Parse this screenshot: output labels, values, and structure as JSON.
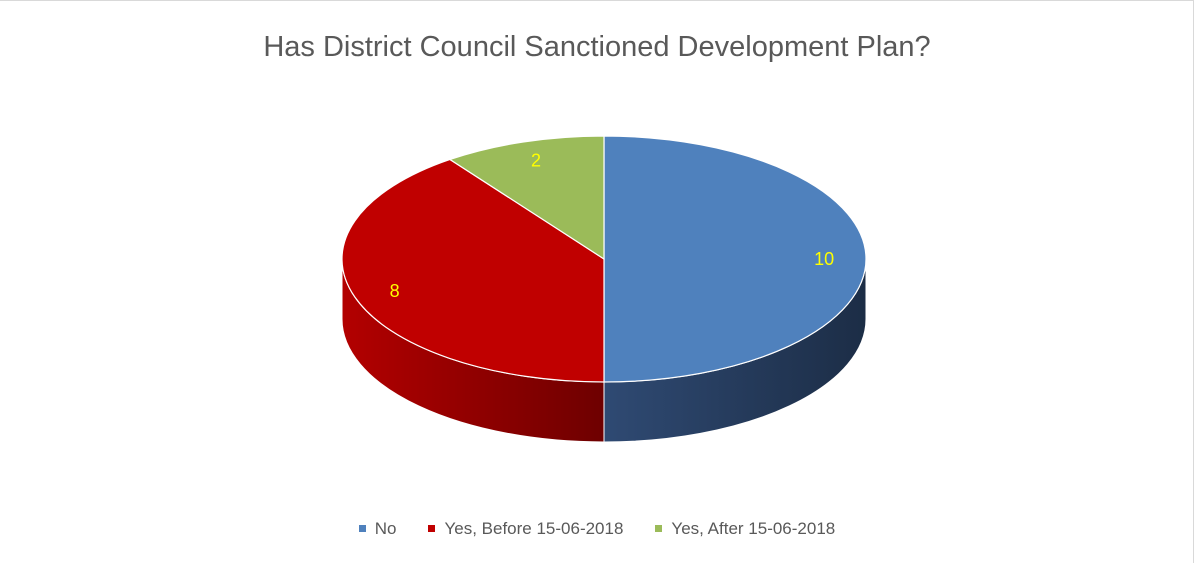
{
  "chart_data": {
    "type": "pie",
    "title": "Has District Council Sanctioned Development Plan?",
    "categories": [
      "No",
      "Yes, Before 15-06-2018",
      "Yes, After 15-06-2018"
    ],
    "values": [
      10,
      8,
      2
    ],
    "data_labels": [
      "10",
      "8",
      "2"
    ],
    "colors": [
      "#4f81bd",
      "#c00000",
      "#9bbb59"
    ],
    "style": "3d",
    "legend_position": "bottom"
  }
}
